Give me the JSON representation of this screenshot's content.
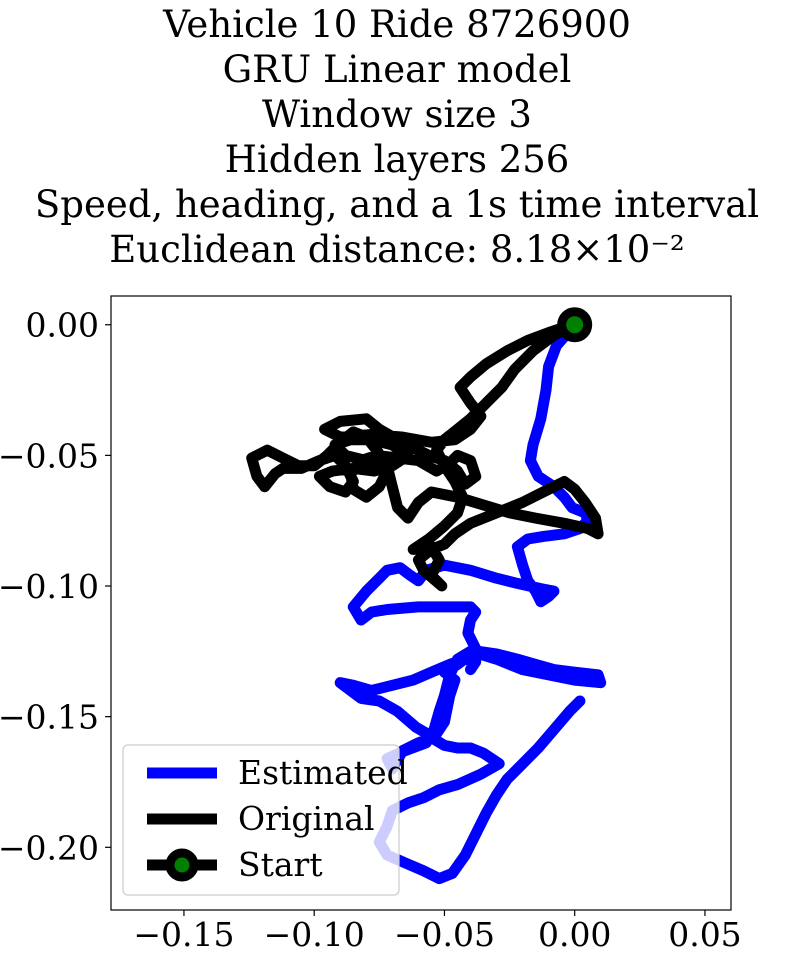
{
  "chart_data": {
    "type": "line",
    "title_lines": [
      "Vehicle 10 Ride 8726900",
      "GRU Linear model",
      "Window size 3",
      "Hidden layers 256",
      "Speed, heading, and a 1s time interval",
      "Euclidean distance: 8.18×10⁻²"
    ],
    "xlabel": "",
    "ylabel": "",
    "xlim": [
      -0.178,
      0.06
    ],
    "ylim": [
      -0.224,
      0.011
    ],
    "x_ticks": [
      -0.15,
      -0.1,
      -0.05,
      0.0,
      0.05
    ],
    "x_tick_labels": [
      "−0.15",
      "−0.10",
      "−0.05",
      "0.00",
      "0.05"
    ],
    "y_ticks": [
      0.0,
      -0.05,
      -0.1,
      -0.15,
      -0.2
    ],
    "y_tick_labels": [
      "0.00",
      "−0.05",
      "−0.10",
      "−0.15",
      "−0.20"
    ],
    "grid": false,
    "legend_placement": "lower-left",
    "series": [
      {
        "name": "Estimated",
        "color": "#0000ff",
        "points": [
          [
            0.0,
            0.0
          ],
          [
            -0.007,
            -0.008
          ],
          [
            -0.01,
            -0.016
          ],
          [
            -0.011,
            -0.025
          ],
          [
            -0.013,
            -0.036
          ],
          [
            -0.016,
            -0.046
          ],
          [
            -0.017,
            -0.052
          ],
          [
            -0.014,
            -0.058
          ],
          [
            -0.008,
            -0.062
          ],
          [
            -0.004,
            -0.066
          ],
          [
            -0.001,
            -0.07
          ],
          [
            0.004,
            -0.072
          ],
          [
            0.005,
            -0.075
          ],
          [
            0.002,
            -0.078
          ],
          [
            -0.004,
            -0.08
          ],
          [
            -0.012,
            -0.081
          ],
          [
            -0.018,
            -0.082
          ],
          [
            -0.022,
            -0.085
          ],
          [
            -0.02,
            -0.092
          ],
          [
            -0.018,
            -0.098
          ],
          [
            -0.015,
            -0.102
          ],
          [
            -0.013,
            -0.106
          ],
          [
            -0.01,
            -0.104
          ],
          [
            -0.008,
            -0.102
          ],
          [
            -0.013,
            -0.101
          ],
          [
            -0.022,
            -0.099
          ],
          [
            -0.03,
            -0.097
          ],
          [
            -0.04,
            -0.094
          ],
          [
            -0.05,
            -0.092
          ],
          [
            -0.057,
            -0.094
          ],
          [
            -0.06,
            -0.098
          ],
          [
            -0.063,
            -0.096
          ],
          [
            -0.067,
            -0.093
          ],
          [
            -0.072,
            -0.094
          ],
          [
            -0.075,
            -0.097
          ],
          [
            -0.08,
            -0.102
          ],
          [
            -0.085,
            -0.108
          ],
          [
            -0.082,
            -0.113
          ],
          [
            -0.078,
            -0.11
          ],
          [
            -0.072,
            -0.109
          ],
          [
            -0.06,
            -0.108
          ],
          [
            -0.05,
            -0.108
          ],
          [
            -0.04,
            -0.108
          ],
          [
            -0.038,
            -0.11
          ],
          [
            -0.04,
            -0.113
          ],
          [
            -0.041,
            -0.118
          ],
          [
            -0.038,
            -0.124
          ],
          [
            -0.041,
            -0.127
          ],
          [
            -0.045,
            -0.13
          ],
          [
            -0.05,
            -0.133
          ],
          [
            -0.046,
            -0.136
          ],
          [
            -0.048,
            -0.142
          ],
          [
            -0.05,
            -0.152
          ],
          [
            -0.054,
            -0.158
          ],
          [
            -0.061,
            -0.154
          ],
          [
            -0.068,
            -0.148
          ],
          [
            -0.075,
            -0.144
          ],
          [
            -0.082,
            -0.143
          ],
          [
            -0.09,
            -0.137
          ],
          [
            -0.085,
            -0.138
          ],
          [
            -0.078,
            -0.14
          ],
          [
            -0.07,
            -0.138
          ],
          [
            -0.062,
            -0.136
          ],
          [
            -0.055,
            -0.133
          ],
          [
            -0.048,
            -0.13
          ],
          [
            -0.042,
            -0.128
          ],
          [
            -0.038,
            -0.129
          ],
          [
            -0.04,
            -0.132
          ],
          [
            -0.037,
            -0.125
          ],
          [
            -0.03,
            -0.126
          ],
          [
            -0.022,
            -0.128
          ],
          [
            -0.015,
            -0.13
          ],
          [
            -0.008,
            -0.132
          ],
          [
            0.0,
            -0.133
          ],
          [
            0.009,
            -0.134
          ],
          [
            0.01,
            -0.137
          ],
          [
            0.0,
            -0.136
          ],
          [
            -0.01,
            -0.134
          ],
          [
            -0.02,
            -0.132
          ],
          [
            -0.03,
            -0.128
          ],
          [
            -0.04,
            -0.125
          ],
          [
            -0.045,
            -0.128
          ],
          [
            -0.048,
            -0.134
          ],
          [
            -0.05,
            -0.142
          ],
          [
            -0.052,
            -0.148
          ],
          [
            -0.054,
            -0.155
          ],
          [
            -0.057,
            -0.16
          ],
          [
            -0.065,
            -0.163
          ],
          [
            -0.072,
            -0.166
          ],
          [
            -0.07,
            -0.17
          ],
          [
            -0.066,
            -0.163
          ],
          [
            -0.06,
            -0.16
          ],
          [
            -0.055,
            -0.158
          ],
          [
            -0.05,
            -0.161
          ],
          [
            -0.045,
            -0.162
          ],
          [
            -0.04,
            -0.162
          ],
          [
            -0.035,
            -0.164
          ],
          [
            -0.029,
            -0.168
          ],
          [
            -0.036,
            -0.172
          ],
          [
            -0.045,
            -0.176
          ],
          [
            -0.052,
            -0.178
          ],
          [
            -0.058,
            -0.181
          ],
          [
            -0.064,
            -0.183
          ],
          [
            -0.07,
            -0.186
          ],
          [
            -0.072,
            -0.192
          ],
          [
            -0.075,
            -0.198
          ],
          [
            -0.072,
            -0.203
          ],
          [
            -0.065,
            -0.206
          ],
          [
            -0.058,
            -0.209
          ],
          [
            -0.052,
            -0.212
          ],
          [
            -0.047,
            -0.21
          ],
          [
            -0.042,
            -0.203
          ],
          [
            -0.038,
            -0.195
          ],
          [
            -0.034,
            -0.187
          ],
          [
            -0.03,
            -0.18
          ],
          [
            -0.026,
            -0.174
          ],
          [
            -0.02,
            -0.168
          ],
          [
            -0.014,
            -0.162
          ],
          [
            -0.008,
            -0.155
          ],
          [
            -0.002,
            -0.148
          ],
          [
            0.002,
            -0.144
          ]
        ]
      },
      {
        "name": "Original",
        "color": "#000000",
        "points": [
          [
            0.0,
            0.0
          ],
          [
            -0.008,
            -0.004
          ],
          [
            -0.016,
            -0.01
          ],
          [
            -0.023,
            -0.017
          ],
          [
            -0.028,
            -0.024
          ],
          [
            -0.034,
            -0.03
          ],
          [
            -0.04,
            -0.036
          ],
          [
            -0.045,
            -0.04
          ],
          [
            -0.05,
            -0.044
          ],
          [
            -0.053,
            -0.048
          ],
          [
            -0.05,
            -0.054
          ],
          [
            -0.046,
            -0.06
          ],
          [
            -0.043,
            -0.066
          ],
          [
            -0.045,
            -0.072
          ],
          [
            -0.05,
            -0.077
          ],
          [
            -0.056,
            -0.082
          ],
          [
            -0.062,
            -0.086
          ],
          [
            -0.055,
            -0.085
          ],
          [
            -0.052,
            -0.09
          ],
          [
            -0.055,
            -0.096
          ],
          [
            -0.051,
            -0.1
          ],
          [
            -0.058,
            -0.094
          ],
          [
            -0.06,
            -0.09
          ],
          [
            -0.055,
            -0.086
          ],
          [
            -0.05,
            -0.084
          ],
          [
            -0.046,
            -0.08
          ],
          [
            -0.04,
            -0.076
          ],
          [
            -0.03,
            -0.072
          ],
          [
            -0.02,
            -0.068
          ],
          [
            -0.01,
            -0.063
          ],
          [
            -0.004,
            -0.06
          ],
          [
            0.0,
            -0.063
          ],
          [
            0.004,
            -0.068
          ],
          [
            0.008,
            -0.074
          ],
          [
            0.009,
            -0.08
          ],
          [
            0.005,
            -0.078
          ],
          [
            -0.004,
            -0.076
          ],
          [
            -0.015,
            -0.074
          ],
          [
            -0.025,
            -0.072
          ],
          [
            -0.035,
            -0.069
          ],
          [
            -0.045,
            -0.066
          ],
          [
            -0.055,
            -0.064
          ],
          [
            -0.06,
            -0.068
          ],
          [
            -0.064,
            -0.074
          ],
          [
            -0.068,
            -0.07
          ],
          [
            -0.07,
            -0.062
          ],
          [
            -0.072,
            -0.054
          ],
          [
            -0.076,
            -0.048
          ],
          [
            -0.08,
            -0.043
          ],
          [
            -0.085,
            -0.041
          ],
          [
            -0.09,
            -0.045
          ],
          [
            -0.095,
            -0.05
          ],
          [
            -0.1,
            -0.054
          ],
          [
            -0.106,
            -0.054
          ],
          [
            -0.112,
            -0.051
          ],
          [
            -0.118,
            -0.048
          ],
          [
            -0.124,
            -0.051
          ],
          [
            -0.122,
            -0.058
          ],
          [
            -0.119,
            -0.062
          ],
          [
            -0.115,
            -0.057
          ],
          [
            -0.112,
            -0.055
          ],
          [
            -0.105,
            -0.055
          ],
          [
            -0.098,
            -0.052
          ],
          [
            -0.092,
            -0.05
          ],
          [
            -0.088,
            -0.054
          ],
          [
            -0.085,
            -0.06
          ],
          [
            -0.088,
            -0.064
          ],
          [
            -0.094,
            -0.062
          ],
          [
            -0.098,
            -0.058
          ],
          [
            -0.093,
            -0.056
          ],
          [
            -0.085,
            -0.055
          ],
          [
            -0.077,
            -0.056
          ],
          [
            -0.07,
            -0.054
          ],
          [
            -0.064,
            -0.05
          ],
          [
            -0.07,
            -0.046
          ],
          [
            -0.078,
            -0.044
          ],
          [
            -0.086,
            -0.044
          ],
          [
            -0.092,
            -0.046
          ],
          [
            -0.088,
            -0.05
          ],
          [
            -0.08,
            -0.052
          ],
          [
            -0.072,
            -0.056
          ],
          [
            -0.075,
            -0.062
          ],
          [
            -0.08,
            -0.066
          ],
          [
            -0.085,
            -0.063
          ],
          [
            -0.086,
            -0.057
          ],
          [
            -0.082,
            -0.052
          ],
          [
            -0.076,
            -0.05
          ],
          [
            -0.068,
            -0.051
          ],
          [
            -0.06,
            -0.052
          ],
          [
            -0.053,
            -0.056
          ],
          [
            -0.048,
            -0.053
          ],
          [
            -0.045,
            -0.05
          ],
          [
            -0.04,
            -0.052
          ],
          [
            -0.038,
            -0.058
          ],
          [
            -0.042,
            -0.061
          ],
          [
            -0.045,
            -0.056
          ],
          [
            -0.05,
            -0.052
          ],
          [
            -0.056,
            -0.05
          ],
          [
            -0.062,
            -0.047
          ],
          [
            -0.068,
            -0.044
          ],
          [
            -0.075,
            -0.04
          ],
          [
            -0.08,
            -0.036
          ],
          [
            -0.09,
            -0.037
          ],
          [
            -0.096,
            -0.04
          ],
          [
            -0.09,
            -0.043
          ],
          [
            -0.078,
            -0.042
          ],
          [
            -0.066,
            -0.043
          ],
          [
            -0.055,
            -0.045
          ],
          [
            -0.046,
            -0.044
          ],
          [
            -0.04,
            -0.04
          ],
          [
            -0.036,
            -0.035
          ],
          [
            -0.04,
            -0.03
          ],
          [
            -0.044,
            -0.024
          ],
          [
            -0.04,
            -0.02
          ],
          [
            -0.034,
            -0.015
          ],
          [
            -0.026,
            -0.01
          ],
          [
            -0.018,
            -0.006
          ],
          [
            -0.01,
            -0.003
          ],
          [
            -0.004,
            -0.001
          ],
          [
            0.0,
            0.0
          ]
        ]
      }
    ],
    "start_point": {
      "name": "Start",
      "x": 0.0,
      "y": 0.0,
      "marker_color": "#008000",
      "edge_color": "#000000"
    },
    "legend": {
      "entries": [
        {
          "label": "Estimated",
          "color": "#0000ff",
          "marker": false
        },
        {
          "label": "Original",
          "color": "#000000",
          "marker": false
        },
        {
          "label": "Start",
          "color": "#000000",
          "marker": true,
          "marker_color": "#008000"
        }
      ]
    }
  }
}
